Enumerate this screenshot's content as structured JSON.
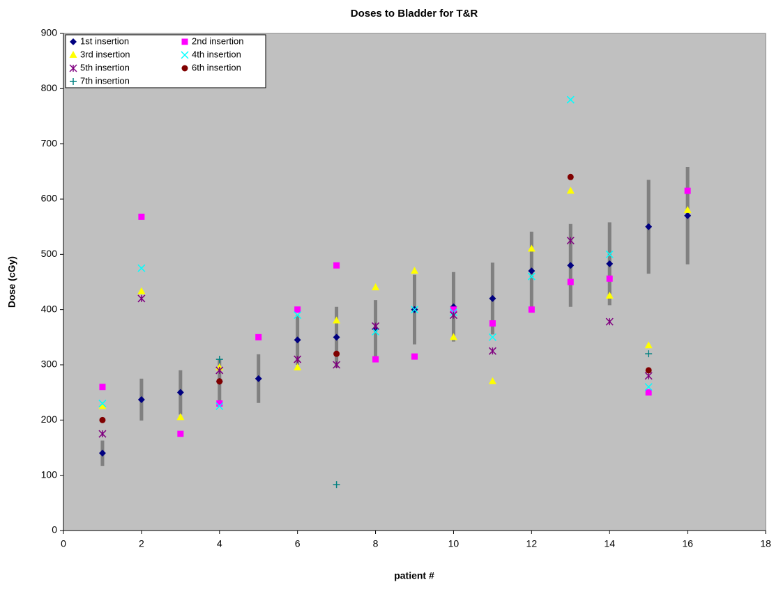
{
  "chart_data": {
    "type": "scatter",
    "title": "Doses to Bladder for T&R",
    "x_label": "patient #",
    "y_label": "Dose (cGy)",
    "xlim": [
      0,
      18
    ],
    "xticks": [
      0,
      2,
      4,
      6,
      8,
      10,
      12,
      14,
      16,
      18
    ],
    "ylim": [
      0,
      900
    ],
    "yticks": [
      0,
      100,
      200,
      300,
      400,
      500,
      600,
      700,
      800,
      900
    ],
    "background": "#c0c0c0",
    "error_color": "#808080",
    "series": [
      {
        "name": "1st insertion",
        "color": "#000080",
        "marker": "diamond",
        "x": [
          1,
          2,
          3,
          4,
          5,
          6,
          7,
          8,
          9,
          10,
          11,
          12,
          13,
          14,
          15,
          16
        ],
        "values": [
          140,
          237,
          250,
          270,
          275,
          345,
          350,
          365,
          400,
          405,
          420,
          470,
          480,
          483,
          550,
          570
        ],
        "errors": [
          23,
          38,
          40,
          40,
          44,
          45,
          55,
          52,
          63,
          63,
          65,
          71,
          75,
          75,
          85,
          88
        ]
      },
      {
        "name": "2nd insertion",
        "color": "#ff00ff",
        "marker": "square",
        "x": [
          1,
          2,
          3,
          4,
          5,
          6,
          7,
          8,
          9,
          10,
          11,
          12,
          13,
          14,
          15,
          16
        ],
        "values": [
          260,
          568,
          175,
          230,
          350,
          400,
          480,
          310,
          315,
          400,
          375,
          400,
          450,
          456,
          250,
          615
        ]
      },
      {
        "name": "3rd insertion",
        "color": "#ffff00",
        "marker": "triangle",
        "x": [
          1,
          2,
          3,
          4,
          6,
          7,
          8,
          9,
          10,
          11,
          12,
          13,
          14,
          15,
          16
        ],
        "values": [
          225,
          433,
          205,
          295,
          295,
          380,
          440,
          470,
          350,
          270,
          510,
          615,
          425,
          335,
          580
        ]
      },
      {
        "name": "4th insertion",
        "color": "#00ffff",
        "marker": "x",
        "x": [
          1,
          2,
          4,
          6,
          8,
          9,
          10,
          11,
          12,
          13,
          14,
          15
        ],
        "values": [
          230,
          475,
          225,
          390,
          360,
          400,
          395,
          350,
          460,
          780,
          500,
          260
        ]
      },
      {
        "name": "5th insertion",
        "color": "#800080",
        "marker": "star",
        "x": [
          1,
          2,
          4,
          6,
          7,
          8,
          10,
          11,
          13,
          14,
          15
        ],
        "values": [
          175,
          420,
          290,
          310,
          300,
          370,
          390,
          325,
          525,
          378,
          280
        ]
      },
      {
        "name": "6th insertion",
        "color": "#800000",
        "marker": "circle",
        "x": [
          1,
          4,
          7,
          13,
          15
        ],
        "values": [
          200,
          270,
          320,
          640,
          290
        ]
      },
      {
        "name": "7th insertion",
        "color": "#008080",
        "marker": "plus",
        "x": [
          4,
          7,
          15
        ],
        "values": [
          310,
          83,
          320
        ]
      }
    ]
  }
}
